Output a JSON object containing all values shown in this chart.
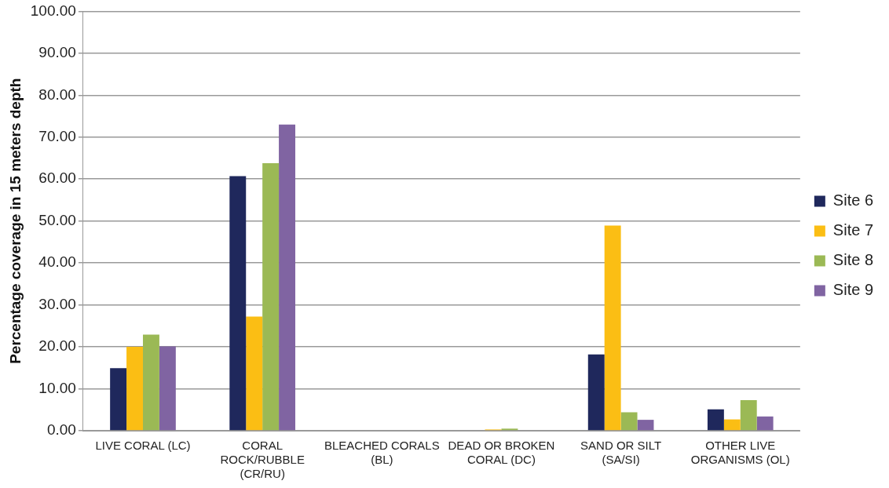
{
  "chart_data": {
    "type": "bar",
    "ylabel": "Percentage coverage in 15 meters depth",
    "categories": [
      "LIVE CORAL (LC)",
      "CORAL ROCK/RUBBLE (CR/RU)",
      "BLEACHED CORALS (BL)",
      "DEAD OR BROKEN CORAL (DC)",
      "SAND OR SILT (SA/SI)",
      "OTHER LIVE ORGANISMS (OL)"
    ],
    "series": [
      {
        "name": "Site 6",
        "color": "#1f285c",
        "values": [
          14.9,
          60.7,
          0,
          0,
          18.2,
          5.1
        ]
      },
      {
        "name": "Site 7",
        "color": "#fbbe14",
        "values": [
          20.0,
          27.2,
          0,
          0.3,
          48.9,
          2.7
        ]
      },
      {
        "name": "Site 8",
        "color": "#9bb955",
        "values": [
          22.9,
          63.8,
          0,
          0.5,
          4.4,
          7.3
        ]
      },
      {
        "name": "Site 9",
        "color": "#8064a2",
        "values": [
          20.1,
          73.0,
          0,
          0,
          2.6,
          3.4
        ]
      }
    ],
    "ylim": [
      0,
      100
    ],
    "yticks": [
      {
        "value": 0,
        "label": "0.00"
      },
      {
        "value": 10,
        "label": "10.00"
      },
      {
        "value": 20,
        "label": "20.00"
      },
      {
        "value": 30,
        "label": "30.00"
      },
      {
        "value": 40,
        "label": "40.00"
      },
      {
        "value": 50,
        "label": "50.00"
      },
      {
        "value": 60,
        "label": "60.00"
      },
      {
        "value": 70,
        "label": "70.00"
      },
      {
        "value": 80,
        "label": "80.00"
      },
      {
        "value": 90,
        "label": "90.00"
      },
      {
        "value": 100,
        "label": "100.00"
      }
    ],
    "grid": "y",
    "legend": "right"
  }
}
